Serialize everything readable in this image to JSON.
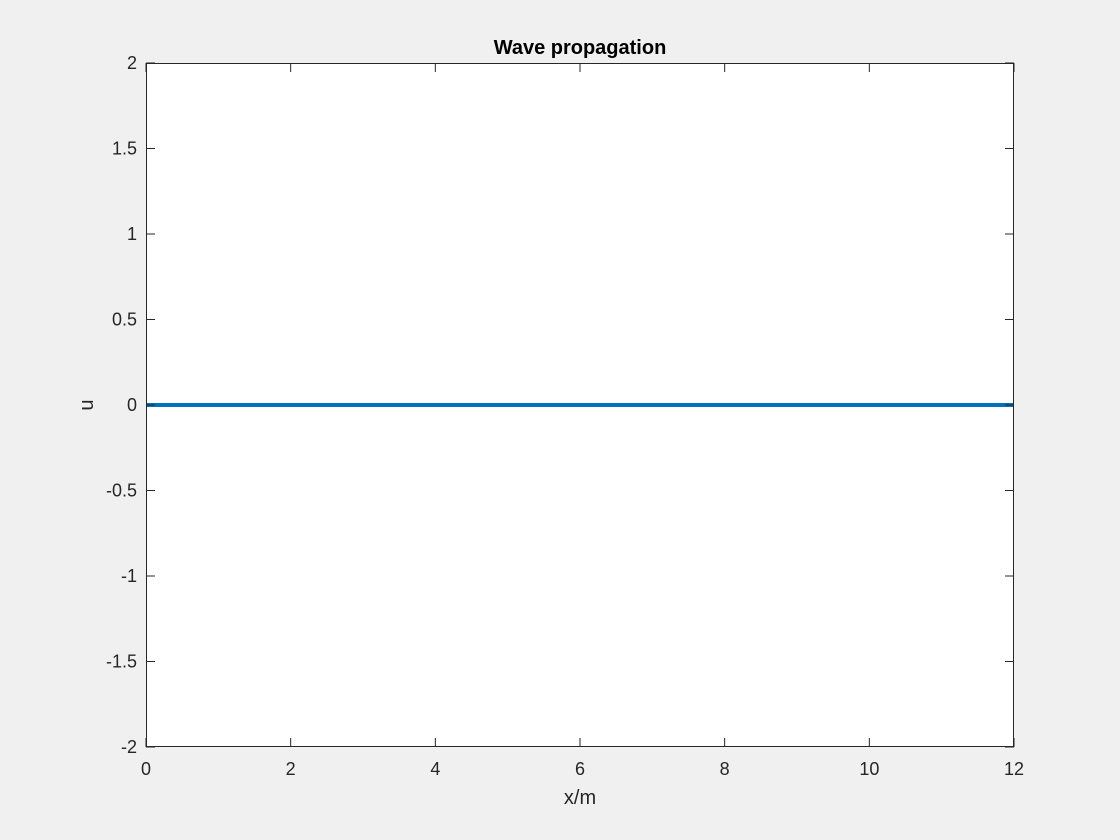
{
  "chart_data": {
    "type": "line",
    "title": "Wave propagation",
    "xlabel": "x/m",
    "ylabel": "u",
    "xlim": [
      0,
      12
    ],
    "ylim": [
      -2,
      2
    ],
    "xticks": [
      0,
      2,
      4,
      6,
      8,
      10,
      12
    ],
    "xtick_labels": [
      "0",
      "2",
      "4",
      "6",
      "8",
      "10",
      "12"
    ],
    "yticks": [
      -2,
      -1.5,
      -1,
      -0.5,
      0,
      0.5,
      1,
      1.5,
      2
    ],
    "ytick_labels": [
      "-2",
      "-1.5",
      "-1",
      "-0.5",
      "0",
      "0.5",
      "1",
      "1.5",
      "2"
    ],
    "grid": false,
    "legend": false,
    "series": [
      {
        "color": "#0072bd",
        "x": [
          0,
          12
        ],
        "y": [
          0,
          0
        ]
      }
    ]
  },
  "colors": {
    "figure_background": "#f0f0f0",
    "axes_background": "#ffffff",
    "axis_color": "#262626",
    "line_color": "#0072bd"
  }
}
